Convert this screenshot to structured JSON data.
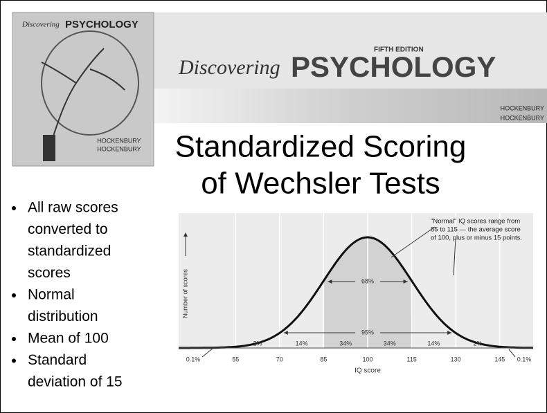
{
  "cover": {
    "script": "Discovering",
    "title": "PSYCHOLOGY",
    "authors": [
      "HOCKENBURY",
      "HOCKENBURY"
    ]
  },
  "header": {
    "script": "Discovering",
    "title": "PSYCHOLOGY",
    "edition": "FIFTH EDITION",
    "authors": [
      "HOCKENBURY",
      "HOCKENBURY"
    ]
  },
  "slide_title": [
    "Standardized Scoring",
    "of Wechsler Tests"
  ],
  "bullets": [
    [
      "All raw scores",
      "converted to",
      "standardized",
      "scores"
    ],
    [
      "Normal",
      "distribution"
    ],
    [
      "Mean of 100"
    ],
    [
      "Standard",
      "deviation of 15"
    ]
  ],
  "figure": {
    "y_label": "Number of scores",
    "x_label": "IQ score",
    "x_ticks": [
      55,
      70,
      85,
      100,
      115,
      130,
      145
    ],
    "tail_labels": [
      "0.1%",
      "0.1%"
    ],
    "band_labels": [
      "2%",
      "14%",
      "34%",
      "34%",
      "14%",
      "2%"
    ],
    "range_labels": [
      "68%",
      "95%"
    ],
    "annotation": [
      "\"Normal\" IQ scores range from",
      "85 to 115 — the average score",
      "of 100, plus or minus 15 points."
    ]
  }
}
